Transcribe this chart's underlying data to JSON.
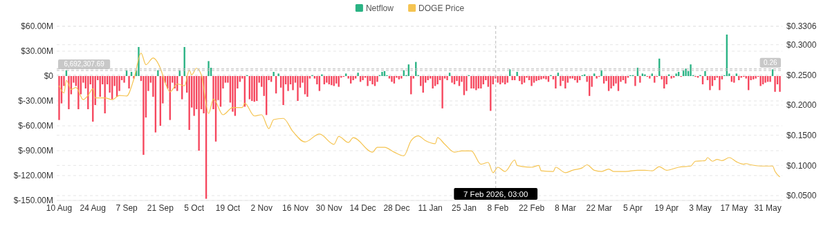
{
  "chart_data": {
    "type": "bar",
    "legend": "top",
    "grid": true,
    "xlim": [
      "2025-08-09",
      "2026-06-06"
    ],
    "xticks": [
      {
        "value": "2025-08-10",
        "label": "10 Aug"
      },
      {
        "value": "2025-08-24",
        "label": "24 Aug"
      },
      {
        "value": "2025-09-07",
        "label": "7 Sep"
      },
      {
        "value": "2025-09-21",
        "label": "21 Sep"
      },
      {
        "value": "2025-10-05",
        "label": "5 Oct"
      },
      {
        "value": "2025-10-19",
        "label": "19 Oct"
      },
      {
        "value": "2025-11-02",
        "label": "2 Nov"
      },
      {
        "value": "2025-11-16",
        "label": "16 Nov"
      },
      {
        "value": "2025-11-30",
        "label": "30 Nov"
      },
      {
        "value": "2025-12-14",
        "label": "14 Dec"
      },
      {
        "value": "2025-12-28",
        "label": "28 Dec"
      },
      {
        "value": "2026-01-11",
        "label": "11 Jan"
      },
      {
        "value": "2026-01-25",
        "label": "25 Jan"
      },
      {
        "value": "2026-02-08",
        "label": "8 Feb"
      },
      {
        "value": "2026-02-22",
        "label": "22 Feb"
      },
      {
        "value": "2026-03-08",
        "label": "8 Mar"
      },
      {
        "value": "2026-03-22",
        "label": "22 Mar"
      },
      {
        "value": "2026-04-05",
        "label": "5 Apr"
      },
      {
        "value": "2026-04-19",
        "label": "19 Apr"
      },
      {
        "value": "2026-05-03",
        "label": "3 May"
      },
      {
        "value": "2026-05-17",
        "label": "17 May"
      },
      {
        "value": "2026-05-31",
        "label": "31 May"
      }
    ],
    "ylim": [
      -150,
      60
    ],
    "yticks": [
      {
        "value": -150,
        "label": "$-150.00M"
      },
      {
        "value": -120,
        "label": "$-120.00M"
      },
      {
        "value": -90,
        "label": "$-90.00M"
      },
      {
        "value": -60,
        "label": "$-60.00M"
      },
      {
        "value": -30,
        "label": "$-30.00M"
      },
      {
        "value": 0,
        "label": "$0"
      },
      {
        "value": 30,
        "label": "$30.00M"
      },
      {
        "value": 60,
        "label": "$60.00M"
      }
    ],
    "y2lim": [
      0.042,
      0.3306
    ],
    "y2ticks": [
      {
        "value": 0.05,
        "label": "$0.0500"
      },
      {
        "value": 0.1,
        "label": "$0.1000"
      },
      {
        "value": 0.15,
        "label": "$0.1500"
      },
      {
        "value": 0.2,
        "label": "$0.2000"
      },
      {
        "value": 0.25,
        "label": "$0.2500"
      },
      {
        "value": 0.3,
        "label": "$0.3000"
      },
      {
        "value": 0.3306,
        "label": "$0.3306"
      }
    ],
    "ref_lines": [
      {
        "axis": "x",
        "value": "2026-02-07T03:00",
        "label": "7 Feb 2026, 03:00",
        "color": "#bbbbbb",
        "line_style": "dashed"
      },
      {
        "axis": "y",
        "value": 6.69230769,
        "label": "6,692,307.69",
        "color": "#bbbbbb",
        "line_style": "dashed"
      },
      {
        "axis": "y2",
        "value": 0.26,
        "label": "0.26",
        "color": "#bbbbbb",
        "line_style": "dashed"
      }
    ],
    "x": [
      "2025-08-10",
      "2025-08-11",
      "2025-08-12",
      "2025-08-13",
      "2025-08-14",
      "2025-08-15",
      "2025-08-16",
      "2025-08-17",
      "2025-08-18",
      "2025-08-19",
      "2025-08-20",
      "2025-08-21",
      "2025-08-22",
      "2025-08-23",
      "2025-08-24",
      "2025-08-25",
      "2025-08-26",
      "2025-08-27",
      "2025-08-28",
      "2025-08-29",
      "2025-08-30",
      "2025-08-31",
      "2025-09-01",
      "2025-09-02",
      "2025-09-03",
      "2025-09-04",
      "2025-09-05",
      "2025-09-06",
      "2025-09-07",
      "2025-09-08",
      "2025-09-09",
      "2025-09-10",
      "2025-09-11",
      "2025-09-12",
      "2025-09-13",
      "2025-09-14",
      "2025-09-15",
      "2025-09-16",
      "2025-09-17",
      "2025-09-18",
      "2025-09-19",
      "2025-09-20",
      "2025-09-21",
      "2025-09-22",
      "2025-09-23",
      "2025-09-24",
      "2025-09-25",
      "2025-09-26",
      "2025-09-27",
      "2025-09-28",
      "2025-09-29",
      "2025-09-30",
      "2025-10-01",
      "2025-10-02",
      "2025-10-03",
      "2025-10-04",
      "2025-10-05",
      "2025-10-06",
      "2025-10-07",
      "2025-10-08",
      "2025-10-09",
      "2025-10-10",
      "2025-10-11",
      "2025-10-12",
      "2025-10-13",
      "2025-10-14",
      "2025-10-15",
      "2025-10-16",
      "2025-10-17",
      "2025-10-18",
      "2025-10-19",
      "2025-10-20",
      "2025-10-21",
      "2025-10-22",
      "2025-10-23",
      "2025-10-24",
      "2025-10-25",
      "2025-10-26",
      "2025-10-27",
      "2025-10-28",
      "2025-10-29",
      "2025-10-30",
      "2025-10-31",
      "2025-11-01",
      "2025-11-02",
      "2025-11-03",
      "2025-11-04",
      "2025-11-05",
      "2025-11-06",
      "2025-11-07",
      "2025-11-08",
      "2025-11-09",
      "2025-11-10",
      "2025-11-11",
      "2025-11-12",
      "2025-11-13",
      "2025-11-14",
      "2025-11-15",
      "2025-11-16",
      "2025-11-17",
      "2025-11-18",
      "2025-11-19",
      "2025-11-20",
      "2025-11-21",
      "2025-11-22",
      "2025-11-23",
      "2025-11-24",
      "2025-11-25",
      "2025-11-26",
      "2025-11-27",
      "2025-11-28",
      "2025-11-29",
      "2025-11-30",
      "2025-12-01",
      "2025-12-02",
      "2025-12-03",
      "2025-12-04",
      "2025-12-05",
      "2025-12-06",
      "2025-12-07",
      "2025-12-08",
      "2025-12-09",
      "2025-12-10",
      "2025-12-11",
      "2025-12-12",
      "2025-12-13",
      "2025-12-14",
      "2025-12-15",
      "2025-12-16",
      "2025-12-17",
      "2025-12-18",
      "2025-12-19",
      "2025-12-20",
      "2025-12-21",
      "2025-12-22",
      "2025-12-23",
      "2025-12-24",
      "2025-12-25",
      "2025-12-26",
      "2025-12-27",
      "2025-12-28",
      "2025-12-29",
      "2025-12-30",
      "2025-12-31",
      "2026-01-01",
      "2026-01-02",
      "2026-01-03",
      "2026-01-04",
      "2026-01-05",
      "2026-01-06",
      "2026-01-07",
      "2026-01-08",
      "2026-01-09",
      "2026-01-10",
      "2026-01-11",
      "2026-01-12",
      "2026-01-13",
      "2026-01-14",
      "2026-01-15",
      "2026-01-16",
      "2026-01-17",
      "2026-01-18",
      "2026-01-19",
      "2026-01-20",
      "2026-01-21",
      "2026-01-22",
      "2026-01-23",
      "2026-01-24",
      "2026-01-25",
      "2026-01-26",
      "2026-01-27",
      "2026-01-28",
      "2026-01-29",
      "2026-01-30",
      "2026-01-31",
      "2026-02-01",
      "2026-02-02",
      "2026-02-03",
      "2026-02-04",
      "2026-02-05",
      "2026-02-06",
      "2026-02-07",
      "2026-02-08",
      "2026-02-09",
      "2026-02-10",
      "2026-02-11",
      "2026-02-12",
      "2026-02-13",
      "2026-02-14",
      "2026-02-15",
      "2026-02-16",
      "2026-02-17",
      "2026-02-18",
      "2026-02-19",
      "2026-02-20",
      "2026-02-21",
      "2026-02-22",
      "2026-02-23",
      "2026-02-24",
      "2026-02-25",
      "2026-02-26",
      "2026-02-27",
      "2026-02-28",
      "2026-03-01",
      "2026-03-02",
      "2026-03-03",
      "2026-03-04",
      "2026-03-05",
      "2026-03-06",
      "2026-03-07",
      "2026-03-08",
      "2026-03-09",
      "2026-03-10",
      "2026-03-11",
      "2026-03-12",
      "2026-03-13",
      "2026-03-14",
      "2026-03-15",
      "2026-03-16",
      "2026-03-17",
      "2026-03-18",
      "2026-03-19",
      "2026-03-20",
      "2026-03-21",
      "2026-03-22",
      "2026-03-23",
      "2026-03-24",
      "2026-03-25",
      "2026-03-26",
      "2026-03-27",
      "2026-03-28",
      "2026-03-29",
      "2026-03-30",
      "2026-03-31",
      "2026-04-01",
      "2026-04-02",
      "2026-04-03",
      "2026-04-04",
      "2026-04-05",
      "2026-04-06",
      "2026-04-07",
      "2026-04-08",
      "2026-04-09",
      "2026-04-10",
      "2026-04-11",
      "2026-04-12",
      "2026-04-13",
      "2026-04-14",
      "2026-04-15",
      "2026-04-16",
      "2026-04-17",
      "2026-04-18",
      "2026-04-19",
      "2026-04-20",
      "2026-04-21",
      "2026-04-22",
      "2026-04-23",
      "2026-04-24",
      "2026-04-25",
      "2026-04-26",
      "2026-04-27",
      "2026-04-28",
      "2026-04-29",
      "2026-04-30",
      "2026-05-01",
      "2026-05-02",
      "2026-05-03",
      "2026-05-04",
      "2026-05-05",
      "2026-05-06",
      "2026-05-07",
      "2026-05-08",
      "2026-05-09",
      "2026-05-10",
      "2026-05-11",
      "2026-05-12",
      "2026-05-13",
      "2026-05-14",
      "2026-05-15",
      "2026-05-16",
      "2026-05-17",
      "2026-05-18",
      "2026-05-19",
      "2026-05-20",
      "2026-05-21",
      "2026-05-22",
      "2026-05-23",
      "2026-05-24",
      "2026-05-25",
      "2026-05-26",
      "2026-05-27",
      "2026-05-28",
      "2026-05-29",
      "2026-05-30",
      "2026-05-31",
      "2026-06-01",
      "2026-06-02",
      "2026-06-03",
      "2026-06-04",
      "2026-06-05"
    ],
    "series": [
      {
        "name": "Netflow",
        "color": "#2ab384",
        "values": [
          -53,
          -33,
          -12,
          7,
          -40,
          -22,
          -8,
          -12,
          -40,
          -22,
          -8,
          -15,
          -40,
          -10,
          -55,
          -35,
          -5,
          -25,
          -10,
          -45,
          -10,
          -20,
          -28,
          -12,
          -25,
          -18,
          -5,
          -8,
          7,
          -15,
          5,
          -3,
          7,
          35,
          -6,
          -95,
          -50,
          -18,
          -8,
          -25,
          -68,
          7,
          -60,
          -33,
          -8,
          -15,
          -53,
          -8,
          -15,
          -18,
          7,
          -28,
          35,
          -20,
          -65,
          -38,
          -48,
          -40,
          -90,
          -40,
          -45,
          -148,
          18,
          10,
          -40,
          -79,
          -29,
          -37,
          -15,
          -8,
          -8,
          -32,
          -43,
          -48,
          -15,
          -7,
          -3,
          -37,
          1,
          -28,
          -30,
          -31,
          -30,
          -8,
          -13,
          -24,
          -47,
          -5,
          -7,
          5,
          -21,
          3,
          -14,
          -35,
          -10,
          -18,
          -10,
          -17,
          -8,
          -30,
          -14,
          -8,
          -22,
          -25,
          -3,
          1,
          -3,
          -10,
          -18,
          2,
          -10,
          -8,
          -10,
          -11,
          -12,
          -9,
          -13,
          -2,
          -1,
          3,
          -3,
          -9,
          -5,
          -3,
          4,
          -7,
          -5,
          -2,
          -12,
          -6,
          -10,
          -12,
          -7,
          1,
          5,
          6,
          1,
          -3,
          -7,
          -9,
          -2,
          -4,
          -3,
          7,
          1,
          14,
          -22,
          -3,
          17,
          1,
          -12,
          -20,
          -8,
          -5,
          -3,
          -15,
          -12,
          -10,
          -5,
          -39,
          -3,
          -5,
          4,
          -8,
          -10,
          -6,
          -12,
          -7,
          -23,
          -18,
          1,
          -15,
          -15,
          -17,
          -15,
          -15,
          -10,
          -5,
          -13,
          -42,
          -10,
          -3,
          -8,
          -10,
          -8,
          -10,
          -8,
          8,
          -5,
          -5,
          5,
          -6,
          -10,
          -8,
          -2,
          -5,
          -12,
          -8,
          -6,
          -5,
          -4,
          -3,
          -4,
          -7,
          1,
          -4,
          -15,
          4,
          -12,
          -6,
          -15,
          -8,
          -3,
          -3,
          -5,
          -8,
          -5,
          1,
          2,
          -7,
          -24,
          -13,
          3,
          -3,
          -1,
          7,
          -9,
          -6,
          -18,
          -15,
          -12,
          -9,
          -18,
          -7,
          -5,
          -9,
          -2,
          1,
          1,
          -12,
          10,
          -8,
          3,
          2,
          -1,
          -3,
          3,
          -8,
          -1,
          21,
          -4,
          -15,
          -10,
          2,
          -3,
          -2,
          3,
          5,
          -1,
          7,
          9,
          6,
          14,
          1,
          -1,
          -2,
          1,
          -10,
          6,
          -5,
          -17,
          -12,
          -5,
          -2,
          -17,
          -4,
          1,
          50,
          3,
          -7,
          -8,
          3,
          -5,
          -2,
          -1,
          -3,
          -17,
          -5,
          -4,
          -3,
          -1,
          -12,
          -10,
          -8,
          -7,
          -7,
          8,
          -19,
          -10,
          -19
        ],
        "colors": [
          "#f6465d",
          "#f6465d",
          "#f6465d",
          "#2ab384",
          "#f6465d",
          "#f6465d",
          "#f6465d",
          "#f6465d",
          "#f6465d",
          "#f6465d",
          "#f6465d",
          "#f6465d",
          "#f6465d",
          "#f6465d",
          "#f6465d",
          "#f6465d",
          "#f6465d",
          "#f6465d",
          "#f6465d",
          "#f6465d",
          "#f6465d",
          "#f6465d",
          "#f6465d",
          "#f6465d",
          "#f6465d",
          "#f6465d",
          "#f6465d",
          "#f6465d",
          "#2ab384",
          "#f6465d",
          "#2ab384",
          "#f6465d",
          "#2ab384",
          "#2ab384",
          "#f6465d",
          "#f6465d",
          "#f6465d",
          "#f6465d",
          "#f6465d",
          "#f6465d",
          "#f6465d",
          "#2ab384",
          "#f6465d",
          "#f6465d",
          "#f6465d",
          "#f6465d",
          "#f6465d",
          "#f6465d",
          "#f6465d",
          "#f6465d",
          "#2ab384",
          "#f6465d",
          "#2ab384",
          "#f6465d",
          "#f6465d",
          "#f6465d",
          "#f6465d",
          "#f6465d",
          "#f6465d",
          "#f6465d",
          "#f6465d",
          "#f6465d",
          "#2ab384",
          "#2ab384",
          "#f6465d",
          "#f6465d",
          "#f6465d",
          "#f6465d",
          "#f6465d",
          "#f6465d",
          "#f6465d",
          "#f6465d",
          "#f6465d",
          "#f6465d",
          "#f6465d",
          "#f6465d",
          "#f6465d",
          "#f6465d",
          "#2ab384",
          "#f6465d",
          "#f6465d",
          "#f6465d",
          "#f6465d",
          "#f6465d",
          "#f6465d",
          "#f6465d",
          "#f6465d",
          "#f6465d",
          "#f6465d",
          "#2ab384",
          "#f6465d",
          "#2ab384",
          "#f6465d",
          "#f6465d",
          "#f6465d",
          "#f6465d",
          "#f6465d",
          "#f6465d",
          "#f6465d",
          "#f6465d",
          "#f6465d",
          "#f6465d",
          "#f6465d",
          "#f6465d",
          "#f6465d",
          "#2ab384",
          "#f6465d",
          "#f6465d",
          "#f6465d",
          "#2ab384",
          "#f6465d",
          "#f6465d",
          "#f6465d",
          "#f6465d",
          "#f6465d",
          "#f6465d",
          "#f6465d",
          "#f6465d",
          "#f6465d",
          "#2ab384",
          "#f6465d",
          "#f6465d",
          "#f6465d",
          "#f6465d",
          "#2ab384",
          "#f6465d",
          "#f6465d",
          "#f6465d",
          "#f6465d",
          "#f6465d",
          "#f6465d",
          "#f6465d",
          "#f6465d",
          "#2ab384",
          "#2ab384",
          "#2ab384",
          "#2ab384",
          "#f6465d",
          "#f6465d",
          "#f6465d",
          "#f6465d",
          "#f6465d",
          "#f6465d",
          "#2ab384",
          "#2ab384",
          "#2ab384",
          "#f6465d",
          "#f6465d",
          "#2ab384",
          "#2ab384",
          "#f6465d",
          "#f6465d",
          "#f6465d",
          "#f6465d",
          "#f6465d",
          "#f6465d",
          "#f6465d",
          "#f6465d",
          "#f6465d",
          "#f6465d",
          "#f6465d",
          "#f6465d",
          "#2ab384",
          "#f6465d",
          "#f6465d",
          "#f6465d",
          "#f6465d",
          "#f6465d",
          "#f6465d",
          "#f6465d",
          "#2ab384",
          "#f6465d",
          "#f6465d",
          "#f6465d",
          "#f6465d",
          "#f6465d",
          "#f6465d",
          "#f6465d",
          "#f6465d",
          "#f6465d",
          "#f6465d",
          "#f6465d",
          "#f6465d",
          "#f6465d",
          "#f6465d",
          "#f6465d",
          "#f6465d",
          "#2ab384",
          "#f6465d",
          "#f6465d",
          "#2ab384",
          "#f6465d",
          "#f6465d",
          "#f6465d",
          "#f6465d",
          "#f6465d",
          "#f6465d",
          "#f6465d",
          "#f6465d",
          "#f6465d",
          "#f6465d",
          "#f6465d",
          "#f6465d",
          "#f6465d",
          "#2ab384",
          "#f6465d",
          "#f6465d",
          "#2ab384",
          "#f6465d",
          "#f6465d",
          "#f6465d",
          "#f6465d",
          "#f6465d",
          "#f6465d",
          "#f6465d",
          "#f6465d",
          "#f6465d",
          "#2ab384",
          "#2ab384",
          "#f6465d",
          "#f6465d",
          "#f6465d",
          "#2ab384",
          "#f6465d",
          "#f6465d",
          "#2ab384",
          "#f6465d",
          "#f6465d",
          "#f6465d",
          "#f6465d",
          "#f6465d",
          "#f6465d",
          "#f6465d",
          "#f6465d",
          "#f6465d",
          "#f6465d",
          "#f6465d",
          "#2ab384",
          "#2ab384",
          "#f6465d",
          "#2ab384",
          "#f6465d",
          "#2ab384",
          "#2ab384",
          "#f6465d",
          "#f6465d",
          "#2ab384",
          "#f6465d",
          "#f6465d",
          "#2ab384",
          "#f6465d",
          "#f6465d",
          "#f6465d",
          "#2ab384",
          "#f6465d",
          "#f6465d",
          "#2ab384",
          "#2ab384",
          "#f6465d",
          "#2ab384",
          "#2ab384",
          "#2ab384",
          "#2ab384",
          "#2ab384",
          "#f6465d",
          "#f6465d",
          "#2ab384",
          "#f6465d",
          "#2ab384",
          "#f6465d",
          "#f6465d",
          "#f6465d",
          "#f6465d",
          "#f6465d",
          "#f6465d",
          "#f6465d",
          "#2ab384",
          "#2ab384",
          "#2ab384",
          "#f6465d",
          "#f6465d",
          "#2ab384",
          "#f6465d",
          "#f6465d",
          "#f6465d",
          "#f6465d",
          "#f6465d",
          "#f6465d",
          "#f6465d",
          "#f6465d",
          "#f6465d",
          "#f6465d",
          "#f6465d",
          "#f6465d",
          "#f6465d",
          "#f6465d",
          "#2ab384",
          "#f6465d",
          "#f6465d",
          "#f6465d"
        ]
      },
      {
        "name": "DOGE Price",
        "type": "line",
        "axis": "y2",
        "color": "#f5c451",
        "x": [
          "2025-08-10",
          "2025-08-12",
          "2025-08-13",
          "2025-08-15",
          "2025-08-17",
          "2025-08-20",
          "2025-08-22",
          "2025-08-24",
          "2025-08-25",
          "2025-08-29",
          "2025-09-01",
          "2025-09-04",
          "2025-09-07",
          "2025-09-10",
          "2025-09-13",
          "2025-09-15",
          "2025-09-18",
          "2025-09-21",
          "2025-09-23",
          "2025-09-25",
          "2025-09-28",
          "2025-10-01",
          "2025-10-03",
          "2025-10-04",
          "2025-10-06",
          "2025-10-08",
          "2025-10-11",
          "2025-10-13",
          "2025-10-17",
          "2025-10-21",
          "2025-10-25",
          "2025-10-26",
          "2025-10-30",
          "2025-11-02",
          "2025-11-05",
          "2025-11-07",
          "2025-11-11",
          "2025-11-15",
          "2025-11-20",
          "2025-11-26",
          "2025-12-02",
          "2025-12-04",
          "2025-12-08",
          "2025-12-10",
          "2025-12-18",
          "2025-12-20",
          "2025-12-23",
          "2025-12-27",
          "2025-12-31",
          "2026-01-03",
          "2026-01-06",
          "2026-01-09",
          "2026-01-13",
          "2026-01-14",
          "2026-01-17",
          "2026-01-21",
          "2026-01-24",
          "2026-01-28",
          "2026-02-01",
          "2026-02-04",
          "2026-02-06",
          "2026-02-08",
          "2026-02-11",
          "2026-02-15",
          "2026-02-16",
          "2026-02-22",
          "2026-02-25",
          "2026-02-26",
          "2026-03-03",
          "2026-03-04",
          "2026-03-08",
          "2026-03-11",
          "2026-03-15",
          "2026-03-17",
          "2026-03-20",
          "2026-03-23",
          "2026-03-26",
          "2026-03-28",
          "2026-04-02",
          "2026-04-07",
          "2026-04-10",
          "2026-04-13",
          "2026-04-16",
          "2026-04-19",
          "2026-04-24",
          "2026-04-29",
          "2026-05-01",
          "2026-05-05",
          "2026-05-06",
          "2026-05-08",
          "2026-05-10",
          "2026-05-12",
          "2026-05-15",
          "2026-05-18",
          "2026-05-21",
          "2026-05-22",
          "2026-05-24",
          "2026-05-28",
          "2026-06-02",
          "2026-06-03",
          "2026-06-05"
        ],
        "values": [
          0.232,
          0.22,
          0.241,
          0.226,
          0.229,
          0.209,
          0.216,
          0.227,
          0.212,
          0.212,
          0.209,
          0.216,
          0.215,
          0.243,
          0.286,
          0.267,
          0.278,
          0.261,
          0.237,
          0.222,
          0.235,
          0.232,
          0.258,
          0.25,
          0.261,
          0.25,
          0.186,
          0.21,
          0.184,
          0.196,
          0.196,
          0.203,
          0.182,
          0.184,
          0.161,
          0.176,
          0.178,
          0.156,
          0.139,
          0.152,
          0.135,
          0.148,
          0.138,
          0.146,
          0.122,
          0.13,
          0.13,
          0.122,
          0.116,
          0.141,
          0.149,
          0.141,
          0.136,
          0.146,
          0.135,
          0.122,
          0.124,
          0.124,
          0.102,
          0.105,
          0.088,
          0.097,
          0.09,
          0.109,
          0.1,
          0.097,
          0.1,
          0.091,
          0.09,
          0.097,
          0.088,
          0.092,
          0.096,
          0.101,
          0.092,
          0.09,
          0.094,
          0.09,
          0.09,
          0.092,
          0.092,
          0.091,
          0.098,
          0.092,
          0.097,
          0.099,
          0.107,
          0.108,
          0.113,
          0.107,
          0.11,
          0.108,
          0.113,
          0.106,
          0.102,
          0.103,
          0.101,
          0.099,
          0.099,
          0.09,
          0.081
        ]
      }
    ]
  }
}
